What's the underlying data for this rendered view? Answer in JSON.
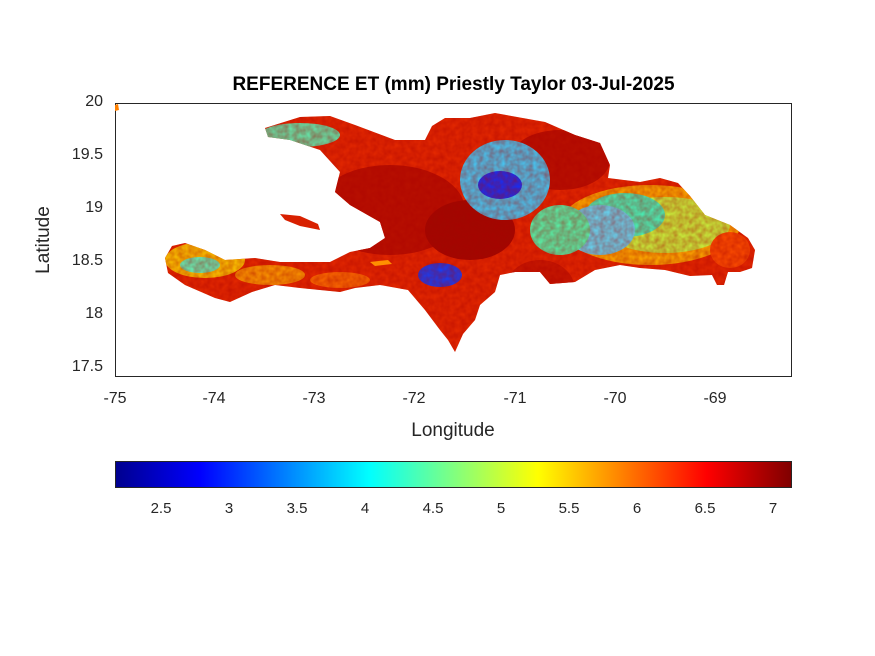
{
  "figure": {
    "title": "REFERENCE ET (mm) Priestly Taylor 03-Jul-2025",
    "xlabel": "Longitude",
    "ylabel": "Latitude"
  },
  "chart_data": {
    "type": "heatmap",
    "title": "REFERENCE ET (mm) Priestly Taylor 03-Jul-2025",
    "xlabel": "Longitude",
    "ylabel": "Latitude",
    "xlim": [
      -75,
      -68.2
    ],
    "ylim": [
      17.4,
      20
    ],
    "x_ticks": [
      "-75",
      "-74",
      "-73",
      "-72",
      "-71",
      "-70",
      "-69"
    ],
    "y_ticks": [
      "20",
      "19.5",
      "19",
      "18.5",
      "18",
      "17.5"
    ],
    "colorbar": {
      "colormap": "jet",
      "range": [
        2.2,
        7.1
      ],
      "ticks": [
        "2.5",
        "3",
        "3.5",
        "4",
        "4.5",
        "5",
        "5.5",
        "6",
        "6.5",
        "7"
      ]
    },
    "colors": {
      "low": "#00008f",
      "mid": "#80ff80",
      "high": "#800000"
    }
  }
}
